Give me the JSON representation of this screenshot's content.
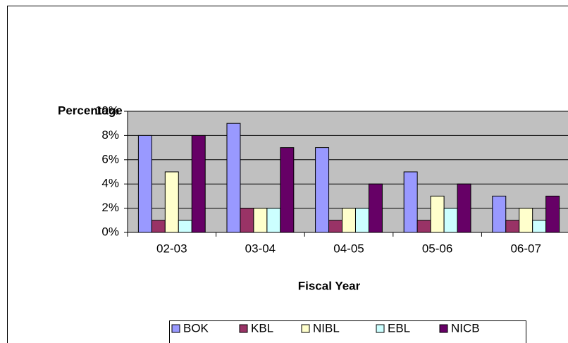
{
  "chart_data": {
    "type": "bar",
    "y_label": "Percentage",
    "x_label": "Fiscal Year",
    "categories": [
      "02-03",
      "03-04",
      "04-05",
      "05-06",
      "06-07"
    ],
    "series": [
      {
        "name": "BOK",
        "color": "#9999ff",
        "values": [
          8,
          9,
          7,
          5,
          3
        ]
      },
      {
        "name": "KBL",
        "color": "#993366",
        "values": [
          1,
          2,
          1,
          1,
          1
        ]
      },
      {
        "name": "NIBL",
        "color": "#ffffcc",
        "values": [
          5,
          2,
          2,
          3,
          2
        ]
      },
      {
        "name": "EBL",
        "color": "#ccffff",
        "values": [
          1,
          2,
          2,
          2,
          1
        ]
      },
      {
        "name": "NICB",
        "color": "#660066",
        "values": [
          8,
          7,
          4,
          4,
          3
        ]
      }
    ],
    "ylim": [
      0,
      10
    ],
    "yticks": [
      {
        "value": 0,
        "label": "0%"
      },
      {
        "value": 2,
        "label": "2%"
      },
      {
        "value": 4,
        "label": "4%"
      },
      {
        "value": 6,
        "label": "6%"
      },
      {
        "value": 8,
        "label": "8%"
      },
      {
        "value": 10,
        "label": "10%"
      }
    ],
    "grid": true,
    "plot_background": "#c0c0c0",
    "legend": "bottom"
  }
}
